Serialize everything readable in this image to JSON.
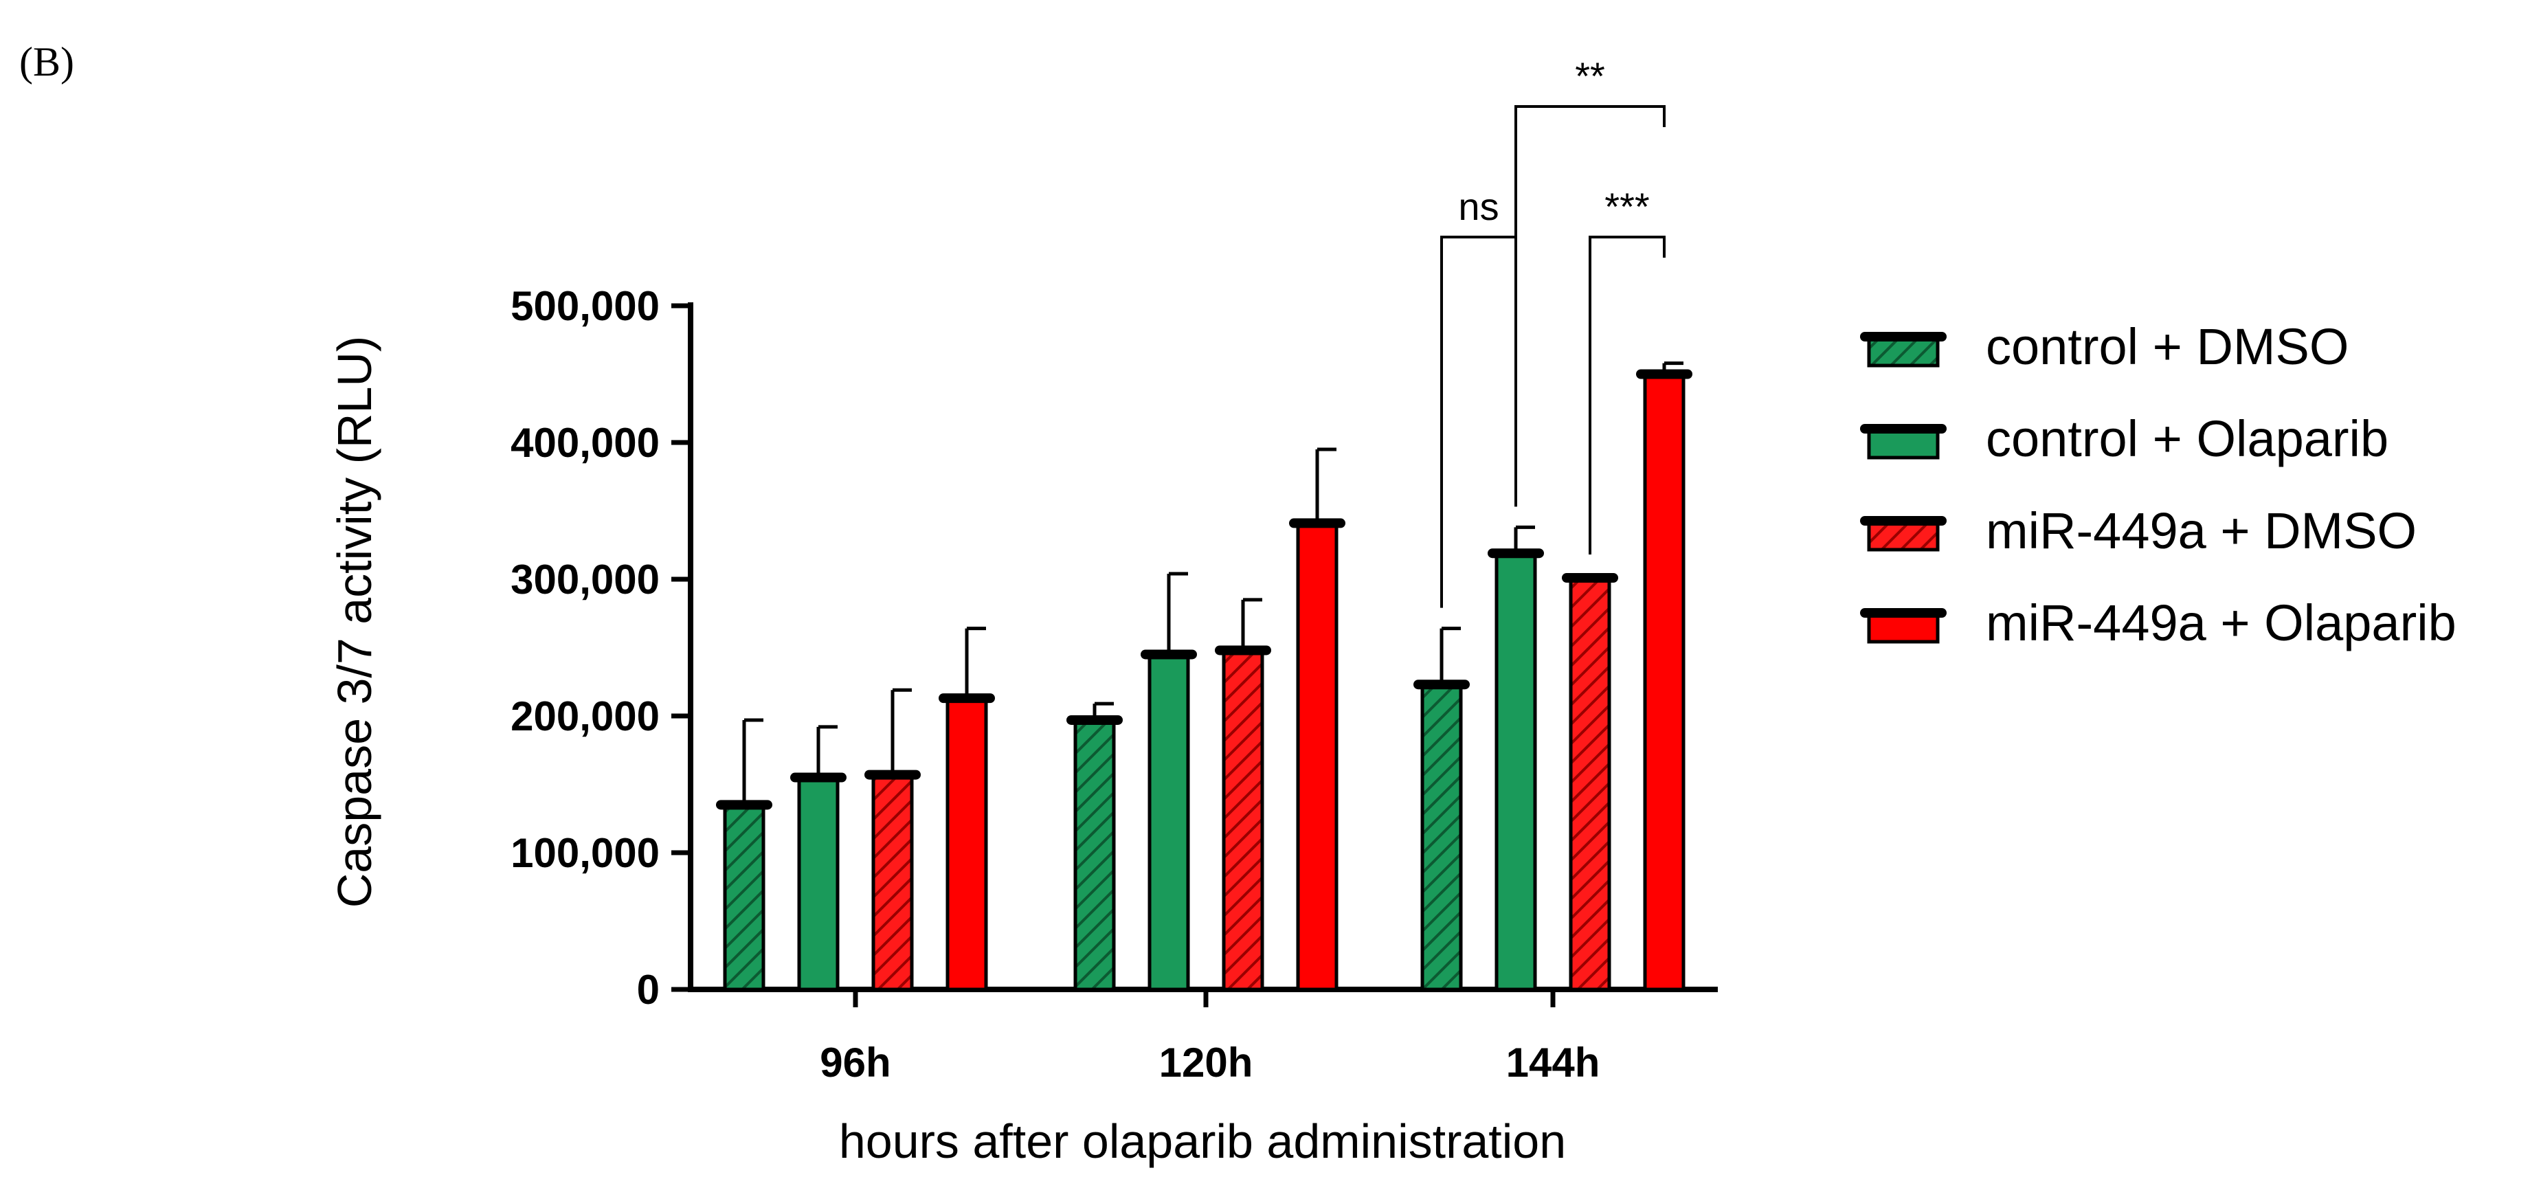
{
  "figure": {
    "panel_label": "(B)"
  },
  "chart_data": {
    "type": "bar",
    "title": "",
    "xlabel": "hours after olaparib administration",
    "ylabel": "Caspase 3/7 activity (RLU)",
    "ylim": [
      0,
      500000
    ],
    "yticks": [
      0,
      100000,
      200000,
      300000,
      400000,
      500000
    ],
    "ytick_labels": [
      "0",
      "100,000",
      "200,000",
      "300,000",
      "400,000",
      "500,000"
    ],
    "categories": [
      "96h",
      "120h",
      "144h"
    ],
    "legend_position": "right",
    "grid": false,
    "series": [
      {
        "name": "control + DMSO",
        "color": "#1a9a5a",
        "hatched": true,
        "values": [
          135000,
          197000,
          223000
        ],
        "errors": [
          62000,
          12000,
          41000
        ]
      },
      {
        "name": "control + Olaparib",
        "color": "#1a9a5a",
        "hatched": false,
        "values": [
          155000,
          245000,
          319000
        ],
        "errors": [
          37000,
          59000,
          19000
        ]
      },
      {
        "name": "miR-449a + DMSO",
        "color": "#ff1a1a",
        "hatched": true,
        "values": [
          157000,
          248000,
          301000
        ],
        "errors": [
          62000,
          37000,
          2000
        ]
      },
      {
        "name": "miR-449a + Olaparib",
        "color": "#ff0000",
        "hatched": false,
        "values": [
          213000,
          341000,
          450000
        ],
        "errors": [
          51000,
          54000,
          8000
        ]
      }
    ],
    "annotations": [
      {
        "label": "ns",
        "category": "144h",
        "from_series": 0,
        "to_series": 1
      },
      {
        "label": "***",
        "category": "144h",
        "from_series": 2,
        "to_series": 3
      },
      {
        "label": "**",
        "category": "144h",
        "from_series": 1,
        "to_series": 3
      }
    ]
  }
}
